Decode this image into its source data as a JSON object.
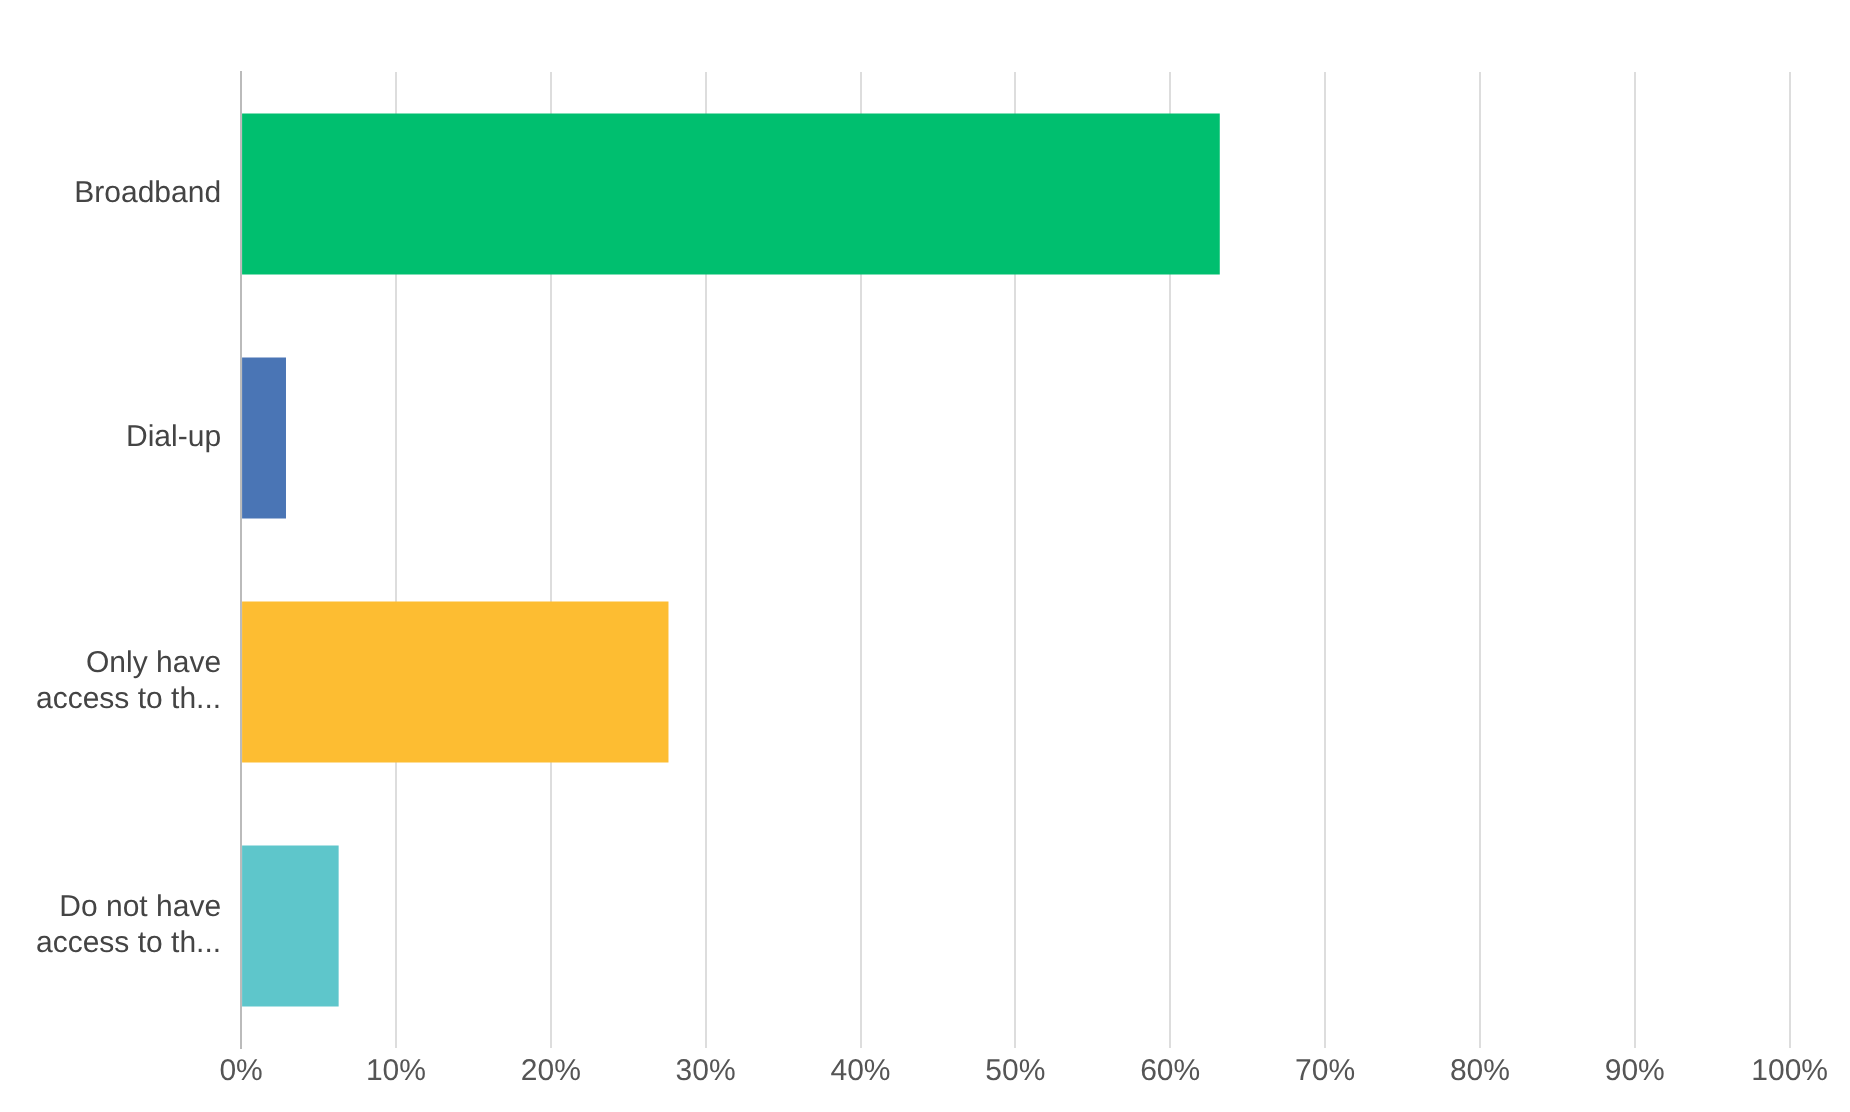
{
  "chart_data": {
    "type": "bar",
    "orientation": "horizontal",
    "categories": [
      "Broadband",
      "Dial-up",
      "Only have access to th...",
      "Do not have access to th..."
    ],
    "values": [
      63.2,
      2.9,
      27.6,
      6.3
    ],
    "colors": [
      "#00bf6f",
      "#4a75b5",
      "#fdbd32",
      "#5ec6cb"
    ],
    "xlim": [
      0,
      100
    ],
    "xticks": [
      {
        "value": 0,
        "label": "0%"
      },
      {
        "value": 10,
        "label": "10%"
      },
      {
        "value": 20,
        "label": "20%"
      },
      {
        "value": 30,
        "label": "30%"
      },
      {
        "value": 40,
        "label": "40%"
      },
      {
        "value": 50,
        "label": "50%"
      },
      {
        "value": 60,
        "label": "60%"
      },
      {
        "value": 70,
        "label": "70%"
      },
      {
        "value": 80,
        "label": "80%"
      },
      {
        "value": 90,
        "label": "90%"
      },
      {
        "value": 100,
        "label": "100%"
      }
    ],
    "grid": "x",
    "legend": false
  }
}
